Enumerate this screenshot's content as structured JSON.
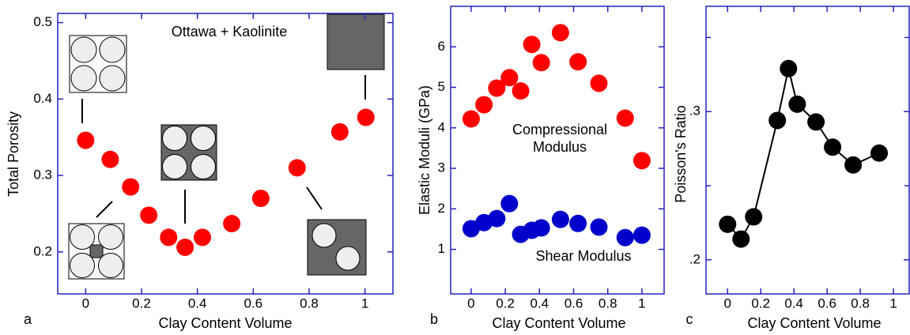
{
  "chart_data": [
    {
      "type": "scatter",
      "panel_label": "a",
      "xlabel": "Clay Content Volume",
      "ylabel": "Total Porosity",
      "annotations": [
        "Ottawa + Kaolinite"
      ],
      "x": [
        0,
        0.088,
        0.161,
        0.226,
        0.297,
        0.356,
        0.418,
        0.523,
        0.627,
        0.757,
        0.91,
        1.003
      ],
      "series": [
        {
          "color": "#ff0000",
          "values": [
            0.346,
            0.321,
            0.285,
            0.248,
            0.219,
            0.206,
            0.219,
            0.237,
            0.27,
            0.31,
            0.357,
            0.376
          ]
        }
      ],
      "xlim": [
        -0.1,
        1.1
      ],
      "ylim": [
        0.145,
        0.512
      ],
      "xticks": [
        0,
        0.2,
        0.4,
        0.6,
        0.8,
        1
      ],
      "yticks": [
        0.2,
        0.3,
        0.4,
        0.5
      ]
    },
    {
      "type": "scatter",
      "panel_label": "b",
      "xlabel": "Clay Content Volume",
      "ylabel": "Elastic Moduli (GPa)",
      "x": [
        0,
        0.075,
        0.15,
        0.224,
        0.29,
        0.355,
        0.411,
        0.523,
        0.626,
        0.748,
        0.902,
        1.0
      ],
      "series": [
        {
          "name": "Compressional Modulus",
          "color": "#ff0000",
          "values": [
            4.22,
            4.57,
            4.98,
            5.24,
            4.91,
            6.06,
            5.61,
            6.35,
            5.63,
            5.1,
            4.24,
            3.19
          ]
        },
        {
          "name": "Shear Modulus",
          "color": "#0000cc",
          "values": [
            1.51,
            1.66,
            1.76,
            2.13,
            1.37,
            1.47,
            1.53,
            1.74,
            1.64,
            1.55,
            1.29,
            1.35
          ]
        }
      ],
      "xlim": [
        -0.12,
        1.13
      ],
      "ylim": [
        -0.1,
        7.0
      ],
      "xticks": [
        0,
        0.2,
        0.4,
        0.6,
        0.8,
        1
      ],
      "yticks": [
        1,
        2,
        3,
        4,
        5,
        6
      ]
    },
    {
      "type": "line",
      "panel_label": "c",
      "xlabel": "Clay Content Volume",
      "ylabel": "Poisson's Ratio",
      "x": [
        0,
        0.081,
        0.157,
        0.3,
        0.367,
        0.42,
        0.533,
        0.633,
        0.757,
        0.914
      ],
      "series": [
        {
          "color": "#000000",
          "values": [
            0.224,
            0.214,
            0.229,
            0.294,
            0.329,
            0.305,
            0.293,
            0.276,
            0.264,
            0.272
          ]
        }
      ],
      "xlim": [
        -0.13,
        1.095
      ],
      "ylim": [
        0.177,
        0.371
      ],
      "xticks": [
        0,
        0.2,
        0.4,
        0.6,
        0.8,
        1
      ],
      "yticks": [
        {
          "value": 0.2,
          "label": ".2"
        },
        {
          "value": 0.3,
          "label": ".3"
        }
      ],
      "yminorticks": [
        0.25,
        0.35
      ]
    }
  ]
}
